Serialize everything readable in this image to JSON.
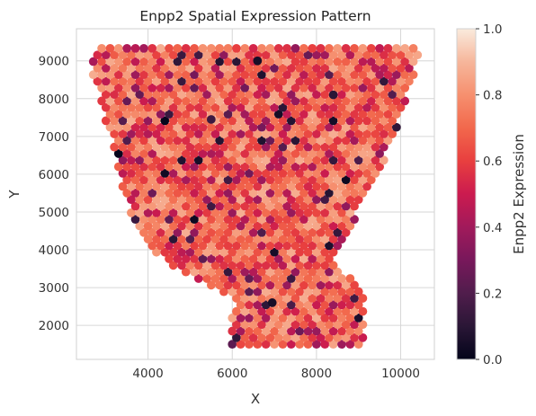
{
  "chart_data": {
    "type": "scatter",
    "title": "Enpp2 Spatial Expression Pattern",
    "xlabel": "X",
    "ylabel": "Y",
    "xlim": [
      2300,
      10800
    ],
    "ylim": [
      1100,
      9850
    ],
    "xticks": [
      4000,
      6000,
      8000,
      10000
    ],
    "yticks": [
      2000,
      3000,
      4000,
      5000,
      6000,
      7000,
      8000,
      9000
    ],
    "grid": true,
    "colormap": "rocket",
    "colorbar": {
      "label": "Enpp2 Expression",
      "range": [
        0.0,
        1.0
      ],
      "ticks": [
        "0.0",
        "0.2",
        "0.4",
        "0.6",
        "0.8",
        "1.0"
      ]
    },
    "point_spacing": 200,
    "region_outline": [
      [
        2650,
        9250
      ],
      [
        2950,
        9450
      ],
      [
        4000,
        9400
      ],
      [
        6000,
        9450
      ],
      [
        8000,
        9400
      ],
      [
        10000,
        9400
      ],
      [
        10450,
        9300
      ],
      [
        10350,
        8700
      ],
      [
        10150,
        8000
      ],
      [
        9950,
        7300
      ],
      [
        9700,
        6600
      ],
      [
        9400,
        5900
      ],
      [
        9150,
        5300
      ],
      [
        8900,
        4800
      ],
      [
        8700,
        4400
      ],
      [
        8400,
        3700
      ],
      [
        8750,
        3350
      ],
      [
        9150,
        2950
      ],
      [
        9200,
        2250
      ],
      [
        9100,
        1500
      ],
      [
        8400,
        1500
      ],
      [
        6000,
        1500
      ],
      [
        6000,
        2200
      ],
      [
        6050,
        2750
      ],
      [
        5600,
        3000
      ],
      [
        4900,
        3350
      ],
      [
        4150,
        3900
      ],
      [
        3700,
        4500
      ],
      [
        3550,
        5000
      ],
      [
        3300,
        6000
      ],
      [
        3100,
        7000
      ],
      [
        2850,
        8000
      ],
      [
        2650,
        8600
      ]
    ],
    "value_distribution": {
      "mean": 0.62,
      "min": 0.0,
      "max": 0.95
    },
    "notable_points": [
      {
        "x": 6950,
        "y": 2600,
        "value": 0.05
      },
      {
        "x": 6600,
        "y": 9000,
        "value": 0.05
      },
      {
        "x": 8400,
        "y": 8100,
        "value": 0.1
      },
      {
        "x": 5500,
        "y": 7450,
        "value": 0.15
      }
    ]
  }
}
